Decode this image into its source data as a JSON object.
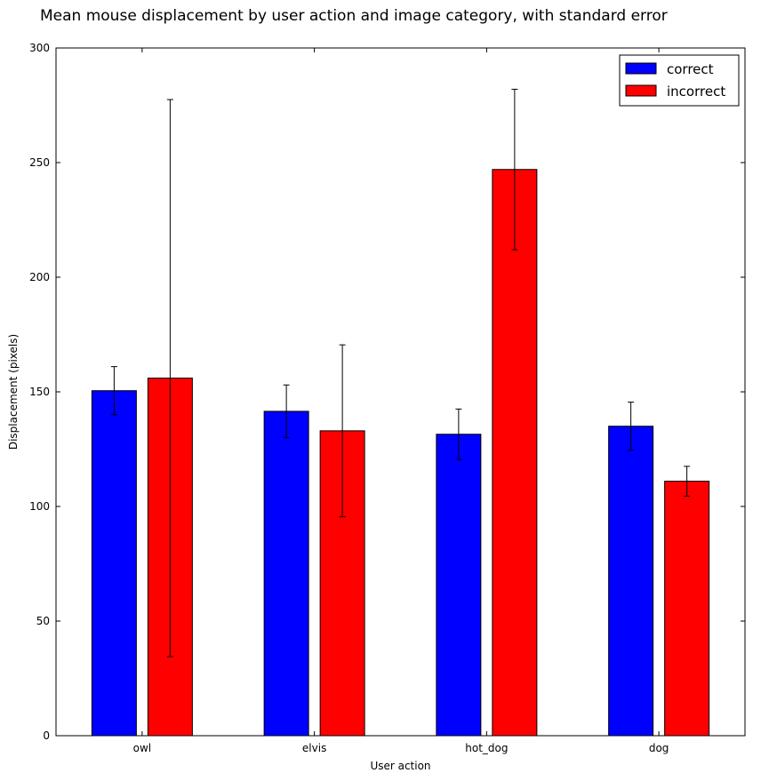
{
  "chart_data": {
    "type": "bar",
    "title": "Mean mouse displacement by user action and image category, with standard error",
    "xlabel": "User action",
    "ylabel": "Displacement (pixels)",
    "categories": [
      "owl",
      "elvis",
      "hot_dog",
      "dog"
    ],
    "series": [
      {
        "name": "correct",
        "color": "#0000ff",
        "values": [
          150.5,
          141.5,
          131.5,
          135.0
        ],
        "errors": [
          10.5,
          11.5,
          11.0,
          10.5
        ]
      },
      {
        "name": "incorrect",
        "color": "#ff0000",
        "values": [
          156.0,
          133.0,
          247.0,
          111.0
        ],
        "errors": [
          121.5,
          37.5,
          35.0,
          6.5
        ]
      }
    ],
    "ylim": [
      0,
      300
    ],
    "yticks": [
      0,
      50,
      100,
      150,
      200,
      250,
      300
    ],
    "grid": false,
    "legend_position": "top-right"
  }
}
